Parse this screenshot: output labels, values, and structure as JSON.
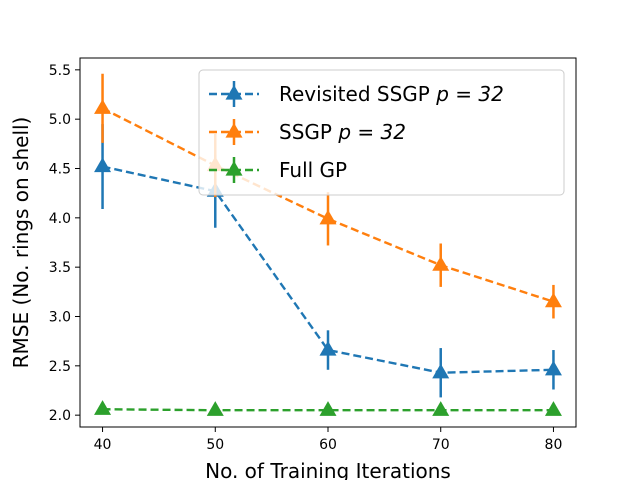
{
  "chart_data": {
    "type": "line",
    "title": "",
    "xlabel": "No. of Training Iterations",
    "ylabel": "RMSE (No. rings on shell)",
    "xlim": [
      38,
      82
    ],
    "ylim": [
      1.88,
      5.62
    ],
    "xticks": [
      40,
      50,
      60,
      70,
      80
    ],
    "yticks": [
      2.0,
      2.5,
      3.0,
      3.5,
      4.0,
      4.5,
      5.0,
      5.5
    ],
    "ytick_labels": [
      "2.0",
      "2.5",
      "3.0",
      "3.5",
      "4.0",
      "4.5",
      "5.0",
      "5.5"
    ],
    "grid": false,
    "legend_position": "top-right",
    "x": [
      40,
      50,
      60,
      70,
      80
    ],
    "series": [
      {
        "name": "Revisited SSGP p = 32",
        "legend_prefix": "Revisited SSGP ",
        "legend_math": "p = 32",
        "color": "#1f77b4",
        "values": [
          4.52,
          4.27,
          2.66,
          2.43,
          2.46
        ],
        "err": [
          0.43,
          0.37,
          0.2,
          0.25,
          0.2
        ]
      },
      {
        "name": "SSGP p = 32",
        "legend_prefix": "SSGP ",
        "legend_math": "p = 32",
        "color": "#ff7f0e",
        "values": [
          5.11,
          4.53,
          3.99,
          3.52,
          3.15
        ],
        "err": [
          0.35,
          0.32,
          0.27,
          0.22,
          0.17
        ]
      },
      {
        "name": "Full GP",
        "legend_prefix": "Full GP",
        "legend_math": "",
        "color": "#2ca02c",
        "values": [
          2.06,
          2.05,
          2.05,
          2.05,
          2.05
        ],
        "err": [
          0.0,
          0.0,
          0.0,
          0.0,
          0.0
        ]
      }
    ]
  }
}
